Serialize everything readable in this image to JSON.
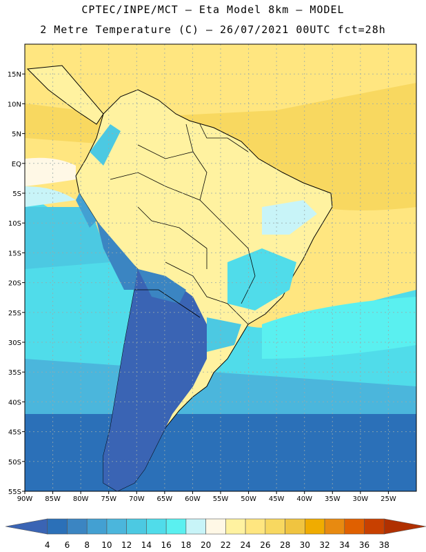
{
  "header": {
    "line1": "CPTEC/INPE/MCT –  Eta Model 8km – MODEL",
    "line2": "2 Metre Temperature (C) – 26/07/2021 00UTC fct=28h"
  },
  "map": {
    "lon_range": [
      -90,
      -20
    ],
    "lat_range": [
      -55,
      20
    ],
    "lon_ticks": [
      {
        "v": -90,
        "label": "90W"
      },
      {
        "v": -85,
        "label": "85W"
      },
      {
        "v": -80,
        "label": "80W"
      },
      {
        "v": -75,
        "label": "75W"
      },
      {
        "v": -70,
        "label": "70W"
      },
      {
        "v": -65,
        "label": "65W"
      },
      {
        "v": -60,
        "label": "60W"
      },
      {
        "v": -55,
        "label": "55W"
      },
      {
        "v": -50,
        "label": "50W"
      },
      {
        "v": -45,
        "label": "45W"
      },
      {
        "v": -40,
        "label": "40W"
      },
      {
        "v": -35,
        "label": "35W"
      },
      {
        "v": -30,
        "label": "30W"
      },
      {
        "v": -25,
        "label": "25W"
      }
    ],
    "lat_ticks": [
      {
        "v": 15,
        "label": "15N"
      },
      {
        "v": 10,
        "label": "10N"
      },
      {
        "v": 5,
        "label": "5N"
      },
      {
        "v": 0,
        "label": "EQ"
      },
      {
        "v": -5,
        "label": "5S"
      },
      {
        "v": -10,
        "label": "10S"
      },
      {
        "v": -15,
        "label": "15S"
      },
      {
        "v": -20,
        "label": "20S"
      },
      {
        "v": -25,
        "label": "25S"
      },
      {
        "v": -30,
        "label": "30S"
      },
      {
        "v": -35,
        "label": "35S"
      },
      {
        "v": -40,
        "label": "40S"
      },
      {
        "v": -45,
        "label": "45S"
      },
      {
        "v": -50,
        "label": "50S"
      },
      {
        "v": -55,
        "label": "55S"
      }
    ],
    "gridlines": "dotted"
  },
  "colorbar": {
    "labels": [
      "4",
      "6",
      "8",
      "10",
      "12",
      "14",
      "16",
      "18",
      "20",
      "22",
      "24",
      "26",
      "28",
      "30",
      "32",
      "34",
      "36",
      "38"
    ],
    "colors": [
      "#3a64b4",
      "#2b70b8",
      "#3b85c2",
      "#43a0d2",
      "#4bb6dc",
      "#4cc9e2",
      "#50dcea",
      "#5af0f0",
      "#c8f4f8",
      "#fff8e6",
      "#fff2a0",
      "#ffe680",
      "#f8d860",
      "#f0c440",
      "#f0ac00",
      "#e88a10",
      "#e06000",
      "#c84000",
      "#b03000"
    ]
  }
}
